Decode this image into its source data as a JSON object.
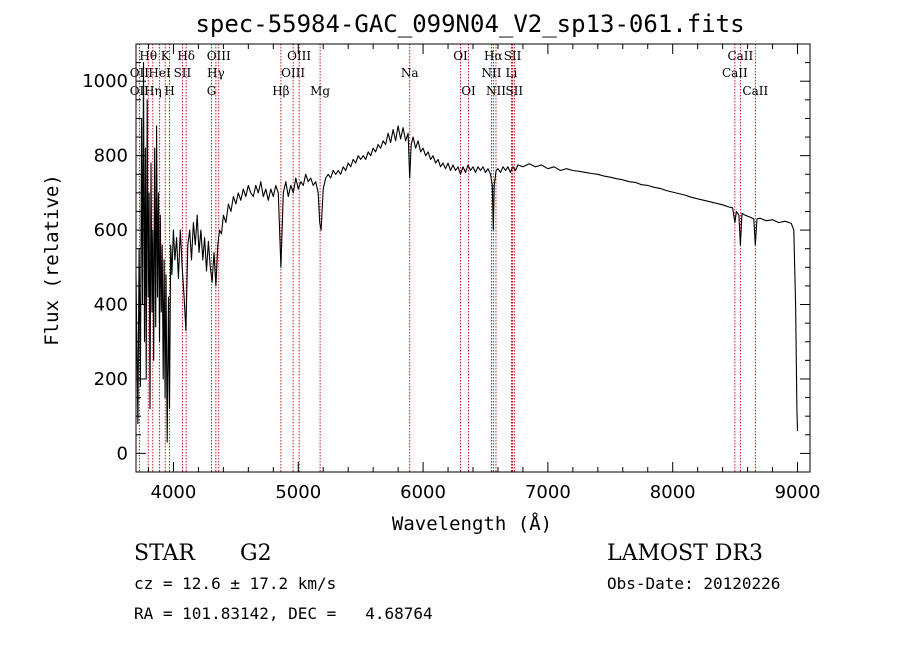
{
  "chart_data": {
    "type": "line",
    "title": "spec-55984-GAC_099N04_V2_sp13-061.fits",
    "xlabel": "Wavelength (Å)",
    "ylabel": "Flux (relative)",
    "xlim": [
      3700,
      9100
    ],
    "ylim": [
      -50,
      1100
    ],
    "x_ticks": [
      4000,
      5000,
      6000,
      7000,
      8000,
      9000
    ],
    "y_ticks": [
      0,
      200,
      400,
      600,
      800,
      1000
    ],
    "series": [
      {
        "name": "spectrum",
        "points": [
          [
            3700,
            480
          ],
          [
            3715,
            80
          ],
          [
            3725,
            550
          ],
          [
            3735,
            180
          ],
          [
            3745,
            900
          ],
          [
            3752,
            400
          ],
          [
            3760,
            1050
          ],
          [
            3768,
            300
          ],
          [
            3775,
            820
          ],
          [
            3782,
            200
          ],
          [
            3790,
            950
          ],
          [
            3798,
            420
          ],
          [
            3805,
            700
          ],
          [
            3812,
            120
          ],
          [
            3820,
            780
          ],
          [
            3828,
            380
          ],
          [
            3835,
            600
          ],
          [
            3842,
            250
          ],
          [
            3850,
            820
          ],
          [
            3858,
            340
          ],
          [
            3865,
            880
          ],
          [
            3872,
            420
          ],
          [
            3880,
            700
          ],
          [
            3888,
            300
          ],
          [
            3895,
            640
          ],
          [
            3903,
            380
          ],
          [
            3910,
            560
          ],
          [
            3918,
            200
          ],
          [
            3925,
            520
          ],
          [
            3933,
            150
          ],
          [
            3940,
            480
          ],
          [
            3950,
            30
          ],
          [
            3960,
            420
          ],
          [
            3968,
            120
          ],
          [
            3978,
            560
          ],
          [
            3988,
            480
          ],
          [
            4000,
            600
          ],
          [
            4012,
            520
          ],
          [
            4025,
            580
          ],
          [
            4040,
            470
          ],
          [
            4055,
            600
          ],
          [
            4070,
            500
          ],
          [
            4085,
            420
          ],
          [
            4100,
            330
          ],
          [
            4115,
            560
          ],
          [
            4130,
            600
          ],
          [
            4145,
            520
          ],
          [
            4160,
            620
          ],
          [
            4175,
            560
          ],
          [
            4190,
            640
          ],
          [
            4205,
            540
          ],
          [
            4220,
            600
          ],
          [
            4235,
            520
          ],
          [
            4250,
            580
          ],
          [
            4265,
            490
          ],
          [
            4280,
            570
          ],
          [
            4295,
            500
          ],
          [
            4310,
            460
          ],
          [
            4325,
            540
          ],
          [
            4340,
            450
          ],
          [
            4355,
            560
          ],
          [
            4370,
            600
          ],
          [
            4385,
            590
          ],
          [
            4400,
            640
          ],
          [
            4420,
            620
          ],
          [
            4440,
            670
          ],
          [
            4460,
            650
          ],
          [
            4480,
            690
          ],
          [
            4500,
            670
          ],
          [
            4520,
            700
          ],
          [
            4540,
            680
          ],
          [
            4560,
            710
          ],
          [
            4580,
            690
          ],
          [
            4600,
            720
          ],
          [
            4620,
            700
          ],
          [
            4640,
            690
          ],
          [
            4660,
            720
          ],
          [
            4680,
            700
          ],
          [
            4700,
            730
          ],
          [
            4720,
            690
          ],
          [
            4740,
            710
          ],
          [
            4760,
            680
          ],
          [
            4780,
            710
          ],
          [
            4800,
            690
          ],
          [
            4820,
            720
          ],
          [
            4840,
            700
          ],
          [
            4861,
            500
          ],
          [
            4880,
            700
          ],
          [
            4900,
            730
          ],
          [
            4920,
            690
          ],
          [
            4940,
            720
          ],
          [
            4960,
            700
          ],
          [
            4980,
            740
          ],
          [
            5000,
            710
          ],
          [
            5020,
            730
          ],
          [
            5040,
            720
          ],
          [
            5060,
            750
          ],
          [
            5080,
            730
          ],
          [
            5100,
            740
          ],
          [
            5120,
            720
          ],
          [
            5140,
            730
          ],
          [
            5160,
            700
          ],
          [
            5172,
            620
          ],
          [
            5183,
            600
          ],
          [
            5200,
            710
          ],
          [
            5220,
            740
          ],
          [
            5240,
            750
          ],
          [
            5260,
            740
          ],
          [
            5280,
            760
          ],
          [
            5300,
            750
          ],
          [
            5320,
            760
          ],
          [
            5340,
            750
          ],
          [
            5360,
            770
          ],
          [
            5380,
            760
          ],
          [
            5400,
            780
          ],
          [
            5420,
            770
          ],
          [
            5440,
            790
          ],
          [
            5460,
            780
          ],
          [
            5480,
            800
          ],
          [
            5500,
            790
          ],
          [
            5520,
            800
          ],
          [
            5540,
            790
          ],
          [
            5560,
            810
          ],
          [
            5580,
            800
          ],
          [
            5600,
            820
          ],
          [
            5620,
            810
          ],
          [
            5640,
            830
          ],
          [
            5660,
            820
          ],
          [
            5680,
            840
          ],
          [
            5700,
            830
          ],
          [
            5720,
            860
          ],
          [
            5740,
            835
          ],
          [
            5760,
            870
          ],
          [
            5780,
            840
          ],
          [
            5800,
            880
          ],
          [
            5820,
            845
          ],
          [
            5840,
            875
          ],
          [
            5860,
            840
          ],
          [
            5880,
            860
          ],
          [
            5893,
            740
          ],
          [
            5905,
            830
          ],
          [
            5920,
            850
          ],
          [
            5940,
            820
          ],
          [
            5960,
            840
          ],
          [
            5980,
            810
          ],
          [
            6000,
            820
          ],
          [
            6020,
            800
          ],
          [
            6040,
            810
          ],
          [
            6060,
            790
          ],
          [
            6080,
            800
          ],
          [
            6100,
            780
          ],
          [
            6120,
            790
          ],
          [
            6140,
            770
          ],
          [
            6160,
            780
          ],
          [
            6180,
            765
          ],
          [
            6200,
            780
          ],
          [
            6220,
            760
          ],
          [
            6240,
            775
          ],
          [
            6260,
            760
          ],
          [
            6280,
            770
          ],
          [
            6300,
            750
          ],
          [
            6320,
            770
          ],
          [
            6340,
            755
          ],
          [
            6360,
            775
          ],
          [
            6380,
            760
          ],
          [
            6400,
            770
          ],
          [
            6420,
            755
          ],
          [
            6440,
            770
          ],
          [
            6460,
            760
          ],
          [
            6480,
            770
          ],
          [
            6500,
            755
          ],
          [
            6520,
            765
          ],
          [
            6540,
            750
          ],
          [
            6555,
            720
          ],
          [
            6563,
            600
          ],
          [
            6570,
            720
          ],
          [
            6585,
            760
          ],
          [
            6600,
            765
          ],
          [
            6620,
            755
          ],
          [
            6640,
            770
          ],
          [
            6660,
            760
          ],
          [
            6680,
            770
          ],
          [
            6700,
            755
          ],
          [
            6720,
            770
          ],
          [
            6740,
            760
          ],
          [
            6760,
            775
          ],
          [
            6800,
            770
          ],
          [
            6850,
            778
          ],
          [
            6900,
            770
          ],
          [
            6950,
            775
          ],
          [
            7000,
            765
          ],
          [
            7050,
            770
          ],
          [
            7100,
            760
          ],
          [
            7150,
            765
          ],
          [
            7200,
            760
          ],
          [
            7250,
            758
          ],
          [
            7300,
            755
          ],
          [
            7350,
            752
          ],
          [
            7400,
            750
          ],
          [
            7450,
            745
          ],
          [
            7500,
            742
          ],
          [
            7550,
            738
          ],
          [
            7600,
            735
          ],
          [
            7650,
            730
          ],
          [
            7700,
            728
          ],
          [
            7750,
            722
          ],
          [
            7800,
            720
          ],
          [
            7850,
            715
          ],
          [
            7900,
            712
          ],
          [
            7950,
            706
          ],
          [
            8000,
            702
          ],
          [
            8050,
            698
          ],
          [
            8100,
            694
          ],
          [
            8150,
            688
          ],
          [
            8200,
            684
          ],
          [
            8250,
            680
          ],
          [
            8300,
            676
          ],
          [
            8350,
            672
          ],
          [
            8400,
            668
          ],
          [
            8450,
            662
          ],
          [
            8480,
            660
          ],
          [
            8498,
            620
          ],
          [
            8510,
            650
          ],
          [
            8530,
            640
          ],
          [
            8542,
            560
          ],
          [
            8555,
            645
          ],
          [
            8580,
            640
          ],
          [
            8620,
            635
          ],
          [
            8650,
            630
          ],
          [
            8662,
            560
          ],
          [
            8675,
            630
          ],
          [
            8700,
            632
          ],
          [
            8750,
            625
          ],
          [
            8800,
            628
          ],
          [
            8850,
            620
          ],
          [
            8900,
            624
          ],
          [
            8950,
            618
          ],
          [
            8970,
            600
          ],
          [
            8985,
            400
          ],
          [
            8995,
            120
          ],
          [
            9000,
            60
          ]
        ]
      }
    ],
    "line_marks": [
      {
        "label": "Hθ",
        "x": 3798,
        "row": 0
      },
      {
        "label": "OII",
        "x": 3727,
        "row": 1
      },
      {
        "label": "OII",
        "x": 3727,
        "row": 2
      },
      {
        "label": "Hη",
        "x": 3835,
        "row": 2
      },
      {
        "label": "K",
        "x": 3934,
        "row": 0
      },
      {
        "label": "HeI",
        "x": 3889,
        "row": 1
      },
      {
        "label": "SII",
        "x": 4072,
        "row": 1
      },
      {
        "label": "H",
        "x": 3969,
        "row": 2
      },
      {
        "label": "Hδ",
        "x": 4102,
        "row": 0
      },
      {
        "label": "OIII",
        "x": 4363,
        "row": 0
      },
      {
        "label": "Hγ",
        "x": 4340,
        "row": 1
      },
      {
        "label": "G",
        "x": 4305,
        "row": 2
      },
      {
        "label": "Hβ",
        "x": 4861,
        "row": 2
      },
      {
        "label": "OIII",
        "x": 5007,
        "row": 0
      },
      {
        "label": "OIII",
        "x": 4959,
        "row": 1
      },
      {
        "label": "Mg",
        "x": 5175,
        "row": 2
      },
      {
        "label": "Na",
        "x": 5893,
        "row": 1
      },
      {
        "label": "OI",
        "x": 6300,
        "row": 0
      },
      {
        "label": "OI",
        "x": 6364,
        "row": 2
      },
      {
        "label": "Hα",
        "x": 6563,
        "row": 0
      },
      {
        "label": "NII",
        "x": 6548,
        "row": 1
      },
      {
        "label": "NII",
        "x": 6584,
        "row": 2
      },
      {
        "label": "SII",
        "x": 6717,
        "row": 0
      },
      {
        "label": "Li",
        "x": 6708,
        "row": 1
      },
      {
        "label": "SII",
        "x": 6731,
        "row": 2
      },
      {
        "label": "CaII",
        "x": 8542,
        "row": 0
      },
      {
        "label": "CaII",
        "x": 8498,
        "row": 1
      },
      {
        "label": "CaII",
        "x": 8662,
        "row": 2
      }
    ]
  },
  "info": {
    "object_class": "STAR",
    "subclass": "G2",
    "survey": "LAMOST DR3",
    "redshift": "cz = 12.6 ± 17.2 km/s",
    "obs_date": "Obs-Date: 20120226",
    "coords": "RA = 101.83142, DEC =   4.68764"
  }
}
